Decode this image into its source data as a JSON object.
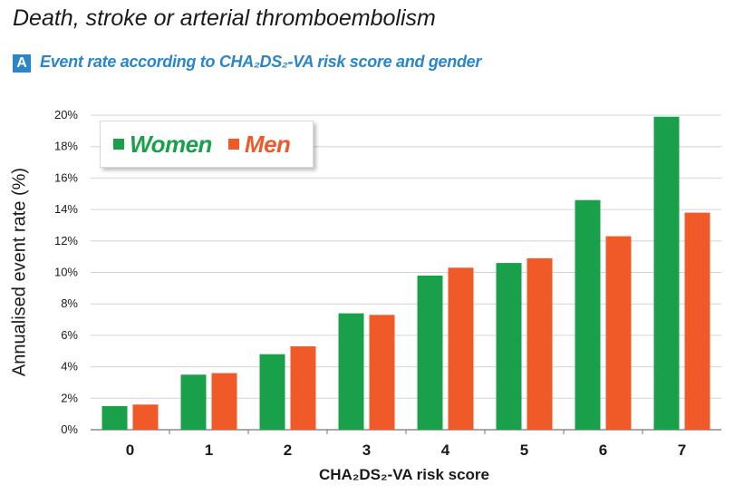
{
  "title": "Death, stroke or arterial thromboembolism",
  "panel": {
    "badge": "A",
    "subtitle": "Event rate according to CHA₂DS₂-VA risk score and gender"
  },
  "colors": {
    "women": "#1aa04a",
    "men": "#f05a28",
    "grid": "#d4d4d4",
    "accent": "#2b86c8"
  },
  "chart_data": {
    "type": "bar",
    "title": "Event rate according to CHA₂DS₂-VA risk score and gender",
    "xlabel": "CHA₂DS₂-VA risk score",
    "ylabel": "Annualised event rate (%)",
    "categories": [
      "0",
      "1",
      "2",
      "3",
      "4",
      "5",
      "6",
      "7"
    ],
    "series": [
      {
        "name": "Women",
        "values": [
          1.5,
          3.5,
          4.8,
          7.4,
          9.8,
          10.6,
          14.6,
          19.9
        ]
      },
      {
        "name": "Men",
        "values": [
          1.6,
          3.6,
          5.3,
          7.3,
          10.3,
          10.9,
          12.3,
          13.8
        ]
      }
    ],
    "ylim": [
      0,
      20
    ],
    "yticks": [
      "0%",
      "2%",
      "4%",
      "6%",
      "8%",
      "10%",
      "12%",
      "14%",
      "16%",
      "18%",
      "20%"
    ],
    "grid": true,
    "legend": "top-left"
  }
}
